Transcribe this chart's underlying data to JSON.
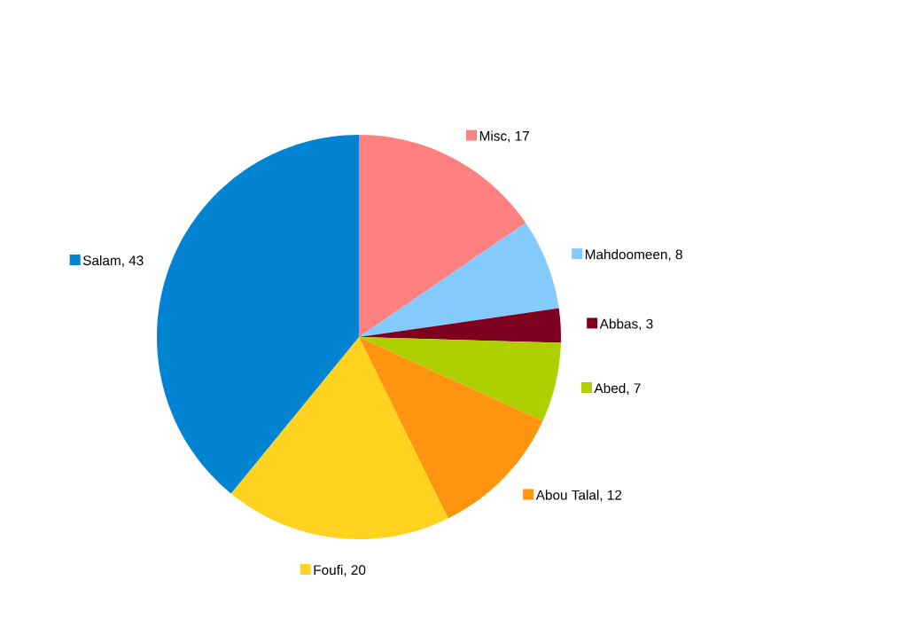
{
  "chart_data": {
    "type": "pie",
    "categories": [
      "Misc, 17",
      "Mahdoomeen, 8",
      "Abbas, 3",
      "Abed, 7",
      "Abou Talal, 12",
      "Foufi, 20",
      "Salam, 43"
    ],
    "values": [
      17,
      8,
      3,
      7,
      12,
      20,
      43
    ],
    "colors": [
      "#ff8080",
      "#83caff",
      "#7e0021",
      "#aecf00",
      "#ff950e",
      "#ffd320",
      "#0084d1"
    ],
    "legend": "right"
  }
}
